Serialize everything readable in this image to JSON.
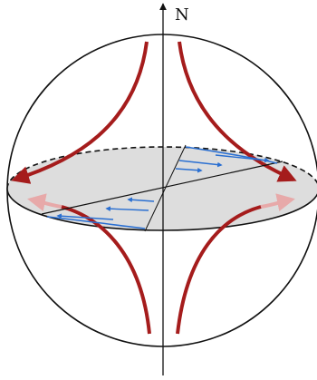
{
  "diagram": {
    "north_label": "N",
    "colors": {
      "outline": "#111111",
      "disk_fill": "#dddddd",
      "flow_arrows": "#a51c1c",
      "flow_arrows_faded": "#e7a9a9",
      "shear_profile": "#2a6fd1"
    },
    "elements": [
      "sphere-outline",
      "equatorial-disk",
      "rotation-axis",
      "incoming-flow-arrows",
      "outgoing-flow-arrows",
      "velocity-profile-arrows"
    ]
  }
}
